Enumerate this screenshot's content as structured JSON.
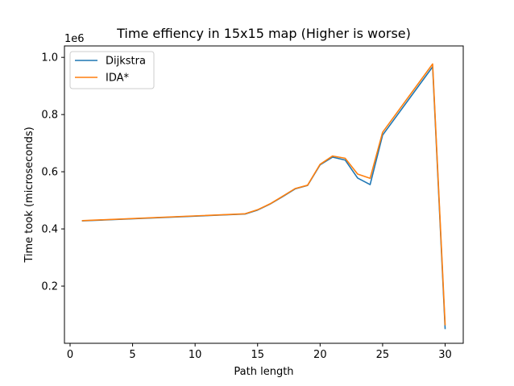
{
  "chart_data": {
    "type": "line",
    "title": "Time effiency in 15x15 map (Higher is worse)",
    "xlabel": "Path length",
    "ylabel": "Time took (microseconds)",
    "offset_text": "1e6",
    "xlim": [
      -0.45,
      31.45
    ],
    "ylim": [
      0.0,
      1.04
    ],
    "xticks": [
      0,
      5,
      10,
      15,
      20,
      25,
      30
    ],
    "yticks": [
      0.2,
      0.4,
      0.6,
      0.8,
      1.0
    ],
    "ytick_labels": [
      "0.2",
      "0.4",
      "0.6",
      "0.8",
      "1.0"
    ],
    "legend_location": "upper-left",
    "series": [
      {
        "name": "Dijkstra",
        "color": "#1f77b4",
        "x": [
          1,
          14,
          15,
          16,
          17,
          18,
          19,
          20,
          21,
          22,
          23,
          24,
          25,
          29,
          30
        ],
        "y": [
          0.428,
          0.452,
          0.466,
          0.487,
          0.513,
          0.54,
          0.552,
          0.624,
          0.651,
          0.641,
          0.578,
          0.555,
          0.728,
          0.967,
          0.052
        ]
      },
      {
        "name": "IDA*",
        "color": "#ff7f0e",
        "x": [
          1,
          14,
          15,
          16,
          17,
          18,
          19,
          20,
          21,
          22,
          23,
          24,
          25,
          29,
          30
        ],
        "y": [
          0.429,
          0.453,
          0.467,
          0.488,
          0.514,
          0.541,
          0.553,
          0.626,
          0.655,
          0.647,
          0.592,
          0.577,
          0.738,
          0.977,
          0.065
        ]
      }
    ]
  }
}
